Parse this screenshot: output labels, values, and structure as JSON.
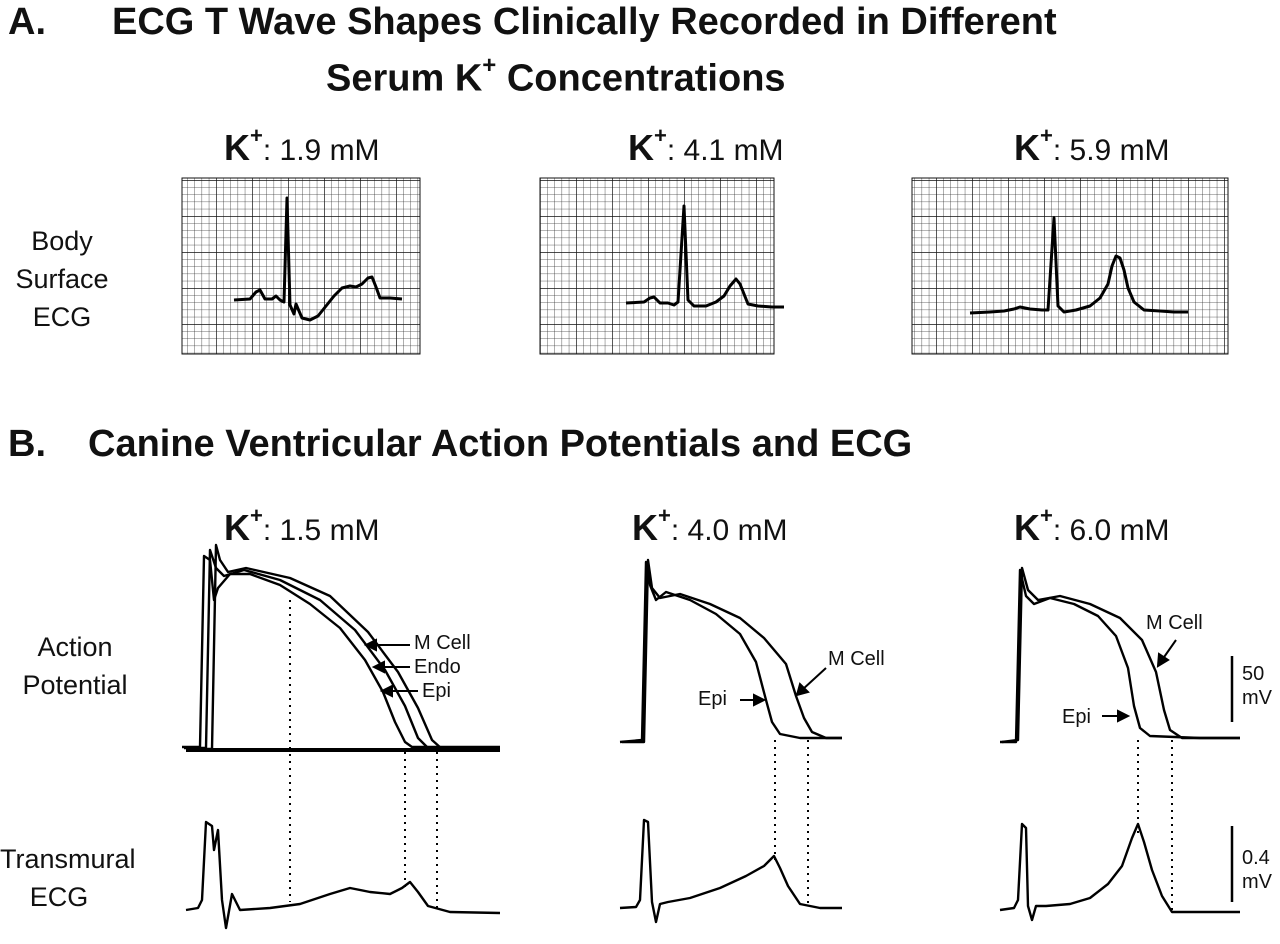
{
  "panel_a": {
    "letter": "A.",
    "title_line1": "ECG T Wave Shapes Clinically Recorded in Different",
    "title_line2_pre": "Serum K",
    "title_line2_sup": "+",
    "title_line2_post": " Concentrations",
    "row_label": [
      "Body",
      "Surface",
      "ECG"
    ],
    "conditions": [
      {
        "k": "K",
        "sup": "+",
        "value": ": 1.9 mM"
      },
      {
        "k": "K",
        "sup": "+",
        "value": ": 4.1 mM"
      },
      {
        "k": "K",
        "sup": "+",
        "value": ": 5.9 mM"
      }
    ]
  },
  "panel_b": {
    "letter": "B.",
    "title": "Canine Ventricular Action Potentials and ECG",
    "row_label_ap": [
      "Action",
      "Potential"
    ],
    "row_label_ecg": [
      "Transmural",
      "ECG"
    ],
    "conditions": [
      {
        "k": "K",
        "sup": "+",
        "value": ": 1.5 mM"
      },
      {
        "k": "K",
        "sup": "+",
        "value": ": 4.0 mM"
      },
      {
        "k": "K",
        "sup": "+",
        "value": ": 6.0 mM"
      }
    ],
    "annotations_1": {
      "m_cell": "M Cell",
      "endo": "Endo",
      "epi": "Epi"
    },
    "annotations_2": {
      "m_cell": "M Cell",
      "epi": "Epi"
    },
    "annotations_3": {
      "m_cell": "M Cell",
      "epi": "Epi"
    },
    "scale_ap": [
      "50",
      "mV"
    ],
    "scale_ecg": [
      "0.4",
      "mV"
    ]
  }
}
